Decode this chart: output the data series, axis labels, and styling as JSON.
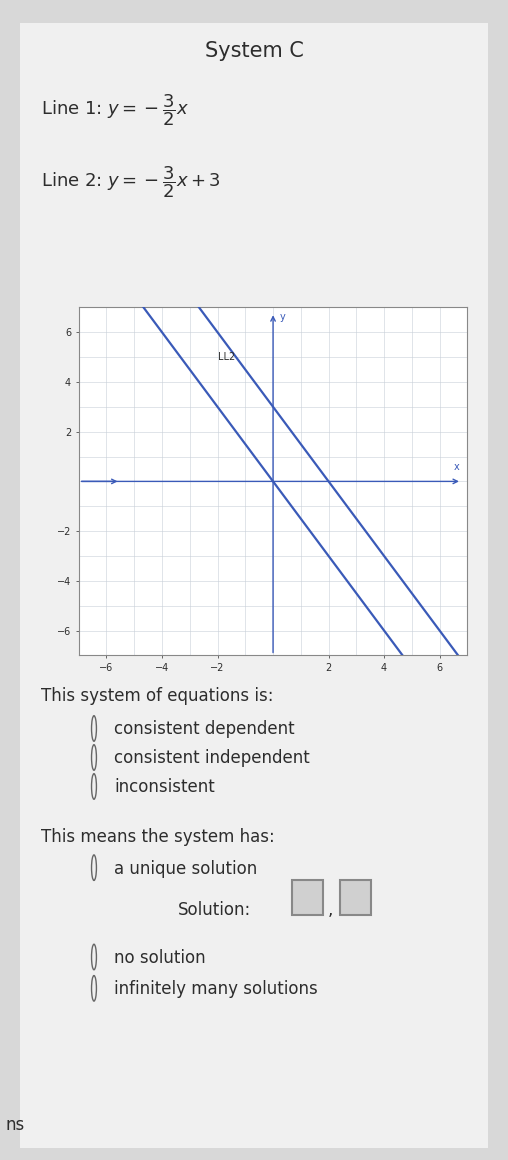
{
  "title": "System C",
  "line1_slope": -1.5,
  "line1_intercept": 0,
  "line2_slope": -1.5,
  "line2_intercept": 3,
  "line_color": "#3a5ab8",
  "graph_xlim": [
    -7,
    7
  ],
  "graph_ylim": [
    -7,
    7
  ],
  "graph_xticks": [
    -6,
    -4,
    -2,
    2,
    4,
    6
  ],
  "graph_yticks": [
    -6,
    -4,
    -2,
    2,
    4,
    6
  ],
  "ll2_label": "LL2",
  "grid_color": "#c8d0d8",
  "axis_color": "#3a5ab8",
  "bg_color": "#ffffff",
  "page_bg": "#d8d8d8",
  "content_bg": "#f0f0f0",
  "question1": "This system of equations is:",
  "options1": [
    "consistent dependent",
    "consistent independent",
    "inconsistent"
  ],
  "question2": "This means the system has:",
  "options2_pre": "a unique solution",
  "solution_label": "Solution:",
  "options2_post1": "no solution",
  "options2_post2": "infinitely many solutions",
  "font_color": "#2d2d2d",
  "circle_color": "#666666",
  "title_fontsize": 15,
  "body_fontsize": 12,
  "graph_tick_fontsize": 7,
  "ns_text": "ns"
}
